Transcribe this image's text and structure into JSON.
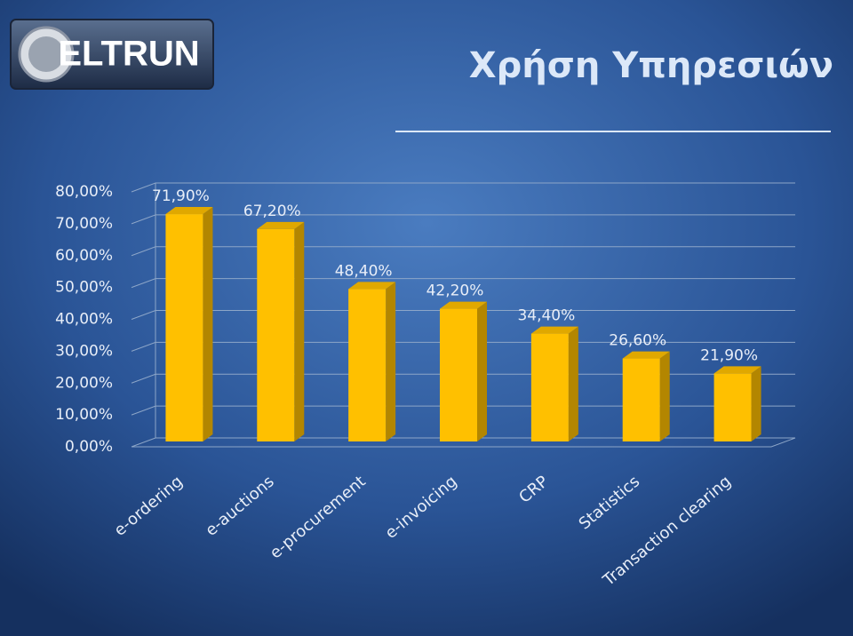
{
  "logo_text": "ELTRUN",
  "chart_data": {
    "type": "bar3d",
    "title": "Χρήση Υπηρεσιών",
    "categories": [
      "e-ordering",
      "e-auctions",
      "e-procurement",
      "e-invoicing",
      "CRP",
      "Statistics",
      "Transaction clearing"
    ],
    "values": [
      71.9,
      67.2,
      48.4,
      42.2,
      34.4,
      26.6,
      21.9
    ],
    "value_labels": [
      "71,90%",
      "67,20%",
      "48,40%",
      "42,20%",
      "34,40%",
      "26,60%",
      "21,90%"
    ],
    "color": "#ffc000",
    "ylim": [
      0,
      80
    ],
    "yticks": [
      {
        "value": 0,
        "label": "0,00%"
      },
      {
        "value": 10,
        "label": "10,00%"
      },
      {
        "value": 20,
        "label": "20,00%"
      },
      {
        "value": 30,
        "label": "30,00%"
      },
      {
        "value": 40,
        "label": "40,00%"
      },
      {
        "value": 50,
        "label": "50,00%"
      },
      {
        "value": 60,
        "label": "60,00%"
      },
      {
        "value": 70,
        "label": "70,00%"
      },
      {
        "value": 80,
        "label": "80,00%"
      }
    ],
    "grid": true
  }
}
